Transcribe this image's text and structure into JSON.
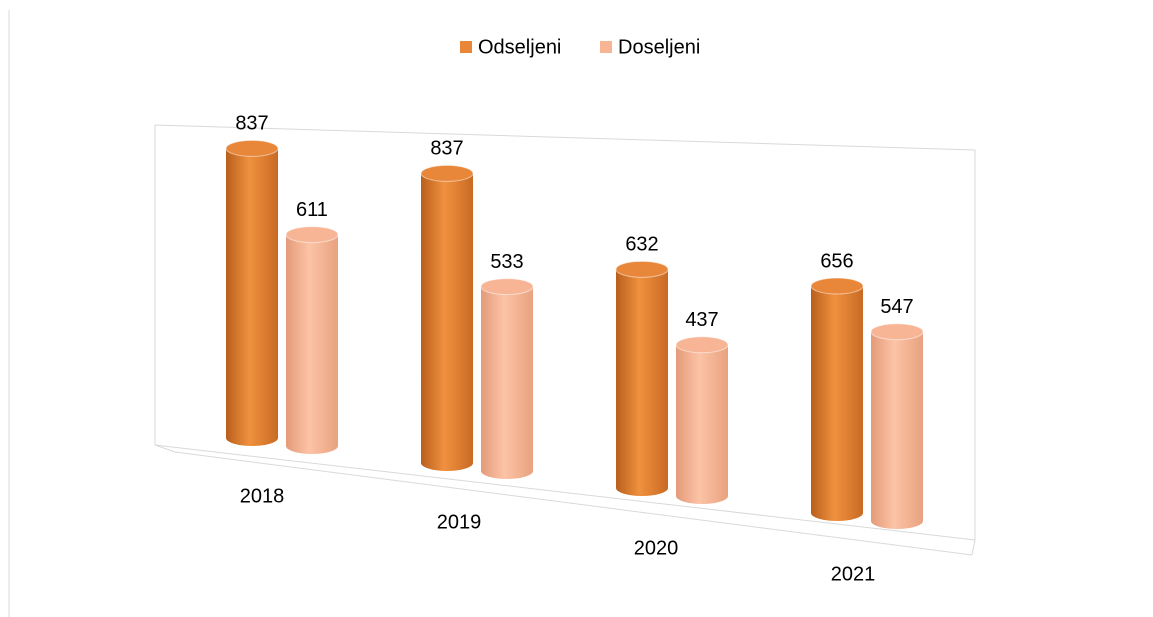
{
  "chart_data": {
    "type": "bar",
    "categories": [
      "2018",
      "2019",
      "2020",
      "2021"
    ],
    "series": [
      {
        "name": "Odseljeni",
        "color": "#e8873a",
        "values": [
          837,
          837,
          632,
          656
        ]
      },
      {
        "name": "Doseljeni",
        "color": "#f7b596",
        "values": [
          611,
          533,
          437,
          547
        ]
      }
    ],
    "legend": "top"
  }
}
